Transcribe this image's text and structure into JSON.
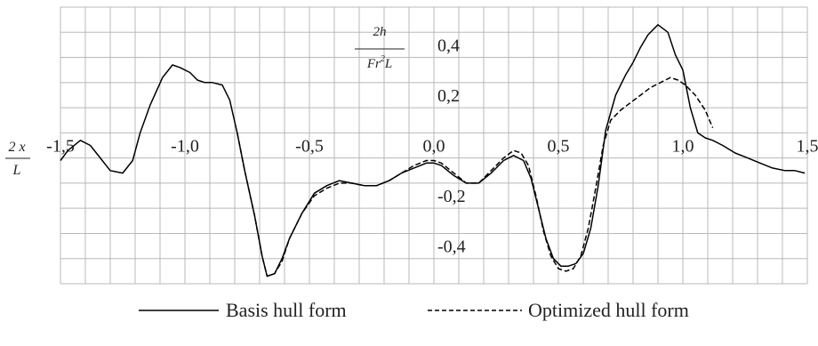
{
  "chart_data": {
    "type": "line",
    "x_axis_label": {
      "numerator": "2 x",
      "denominator": "L"
    },
    "y_axis_label": {
      "numerator": "2h",
      "denominator_base": "Fr",
      "denominator_sup": "2",
      "denominator_tail": "L"
    },
    "xlim": [
      -1.5,
      1.5
    ],
    "ylim": [
      -0.55,
      0.55
    ],
    "x_ticks": [
      {
        "value": -1.5,
        "label": "-1,5"
      },
      {
        "value": -1.0,
        "label": "-1,0"
      },
      {
        "value": -0.5,
        "label": "-0,5"
      },
      {
        "value": 0.0,
        "label": "0,0"
      },
      {
        "value": 0.5,
        "label": "0,5"
      },
      {
        "value": 1.0,
        "label": "1,0"
      },
      {
        "value": 1.5,
        "label": "1,5"
      }
    ],
    "y_ticks": [
      {
        "value": 0.4,
        "label": "0,4"
      },
      {
        "value": 0.2,
        "label": "0,2"
      },
      {
        "value": -0.2,
        "label": "-0,2"
      },
      {
        "value": -0.4,
        "label": "-0,4"
      }
    ],
    "grid": {
      "vertical_step": 0.1,
      "horizontal_step": 0.1,
      "enabled": true
    },
    "legend_position": "bottom",
    "series": [
      {
        "name": "Basis hull form",
        "style": "solid",
        "color": "#000000",
        "x": [
          -1.5,
          -1.47,
          -1.42,
          -1.38,
          -1.34,
          -1.3,
          -1.25,
          -1.21,
          -1.18,
          -1.14,
          -1.09,
          -1.05,
          -1.02,
          -0.98,
          -0.95,
          -0.92,
          -0.89,
          -0.85,
          -0.82,
          -0.79,
          -0.76,
          -0.72,
          -0.69,
          -0.67,
          -0.64,
          -0.61,
          -0.58,
          -0.53,
          -0.48,
          -0.43,
          -0.38,
          -0.33,
          -0.28,
          -0.23,
          -0.18,
          -0.13,
          -0.08,
          -0.03,
          0.0,
          0.03,
          0.08,
          0.13,
          0.18,
          0.23,
          0.28,
          0.32,
          0.36,
          0.39,
          0.42,
          0.45,
          0.48,
          0.51,
          0.54,
          0.57,
          0.6,
          0.63,
          0.66,
          0.69,
          0.73,
          0.77,
          0.8,
          0.83,
          0.86,
          0.9,
          0.94,
          0.97,
          1.0,
          1.03,
          1.06,
          1.09,
          1.12,
          1.16,
          1.21,
          1.26,
          1.31,
          1.36,
          1.41,
          1.45,
          1.49
        ],
        "y": [
          -0.06,
          -0.02,
          0.02,
          0.0,
          -0.05,
          -0.1,
          -0.11,
          -0.06,
          0.05,
          0.16,
          0.27,
          0.32,
          0.31,
          0.29,
          0.26,
          0.25,
          0.25,
          0.24,
          0.18,
          0.05,
          -0.1,
          -0.28,
          -0.44,
          -0.52,
          -0.51,
          -0.45,
          -0.37,
          -0.27,
          -0.19,
          -0.16,
          -0.14,
          -0.15,
          -0.16,
          -0.16,
          -0.14,
          -0.11,
          -0.09,
          -0.07,
          -0.07,
          -0.08,
          -0.12,
          -0.15,
          -0.15,
          -0.11,
          -0.06,
          -0.04,
          -0.06,
          -0.13,
          -0.25,
          -0.37,
          -0.45,
          -0.48,
          -0.48,
          -0.47,
          -0.43,
          -0.33,
          -0.16,
          0.06,
          0.2,
          0.28,
          0.33,
          0.39,
          0.44,
          0.48,
          0.45,
          0.36,
          0.3,
          0.15,
          0.05,
          0.03,
          0.02,
          0.0,
          -0.03,
          -0.05,
          -0.07,
          -0.09,
          -0.1,
          -0.1,
          -0.11
        ]
      },
      {
        "name": "Optimized hull form",
        "style": "dashed",
        "color": "#000000",
        "x": [
          -0.79,
          -0.76,
          -0.72,
          -0.69,
          -0.67,
          -0.64,
          -0.61,
          -0.58,
          -0.53,
          -0.48,
          -0.43,
          -0.38,
          -0.33,
          -0.28,
          -0.23,
          -0.18,
          -0.13,
          -0.08,
          -0.03,
          0.0,
          0.03,
          0.08,
          0.13,
          0.18,
          0.23,
          0.28,
          0.32,
          0.35,
          0.38,
          0.41,
          0.44,
          0.47,
          0.5,
          0.53,
          0.56,
          0.59,
          0.62,
          0.65,
          0.68,
          0.71,
          0.75,
          0.79,
          0.83,
          0.87,
          0.91,
          0.95,
          0.98,
          1.01,
          1.05,
          1.09,
          1.12
        ],
        "y": [
          0.05,
          -0.1,
          -0.28,
          -0.44,
          -0.52,
          -0.51,
          -0.46,
          -0.37,
          -0.27,
          -0.2,
          -0.17,
          -0.15,
          -0.15,
          -0.16,
          -0.16,
          -0.14,
          -0.11,
          -0.08,
          -0.06,
          -0.06,
          -0.07,
          -0.11,
          -0.15,
          -0.15,
          -0.1,
          -0.05,
          -0.02,
          -0.03,
          -0.08,
          -0.2,
          -0.34,
          -0.44,
          -0.49,
          -0.5,
          -0.49,
          -0.44,
          -0.33,
          -0.17,
          0.0,
          0.1,
          0.14,
          0.17,
          0.2,
          0.23,
          0.25,
          0.27,
          0.26,
          0.24,
          0.2,
          0.14,
          0.07
        ]
      }
    ]
  },
  "legend": {
    "basis_label": "Basis hull form",
    "optimized_label": "Optimized hull form"
  }
}
